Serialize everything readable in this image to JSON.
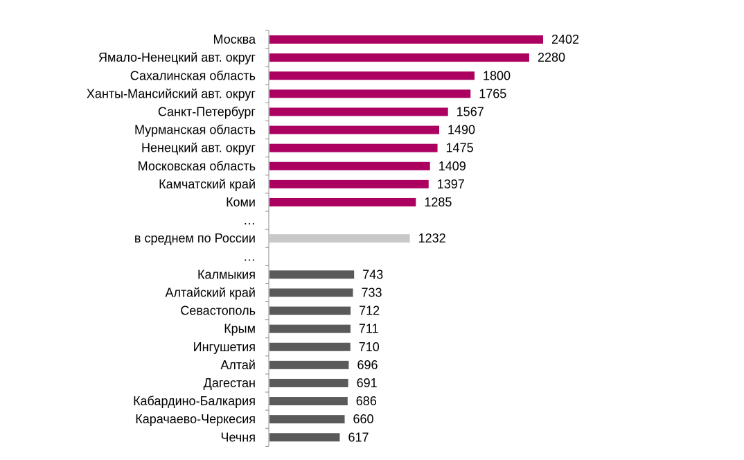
{
  "chart_data": {
    "type": "bar",
    "orientation": "horizontal",
    "title": "",
    "xlabel": "",
    "ylabel": "",
    "grid": false,
    "legend": "none",
    "xlim": [
      0,
      2402
    ],
    "categories": [
      "Москва",
      "Ямало-Ненецкий авт. округ",
      "Сахалинская область",
      "Ханты-Мансийский авт. округ",
      "Санкт-Петербург",
      "Мурманская область",
      "Ненецкий авт. округ",
      "Московская область",
      "Камчатский край",
      "Коми",
      "…",
      "в среднем по России",
      "…",
      "Калмыкия",
      "Алтайский край",
      "Севастополь",
      "Крым",
      "Ингушетия",
      "Алтай",
      "Дагестан",
      "Кабардино-Балкария",
      "Карачаево-Черкесия",
      "Чечня"
    ],
    "values": [
      2402,
      2280,
      1800,
      1765,
      1567,
      1490,
      1475,
      1409,
      1397,
      1285,
      null,
      1232,
      null,
      743,
      733,
      712,
      711,
      710,
      696,
      691,
      686,
      660,
      617
    ],
    "groups": [
      "top",
      "top",
      "top",
      "top",
      "top",
      "top",
      "top",
      "top",
      "top",
      "top",
      "gap",
      "average",
      "gap",
      "bottom",
      "bottom",
      "bottom",
      "bottom",
      "bottom",
      "bottom",
      "bottom",
      "bottom",
      "bottom",
      "bottom"
    ],
    "colors": {
      "top": "#ac0060",
      "average": "#c8c8c8",
      "bottom": "#5a5a5a"
    }
  }
}
